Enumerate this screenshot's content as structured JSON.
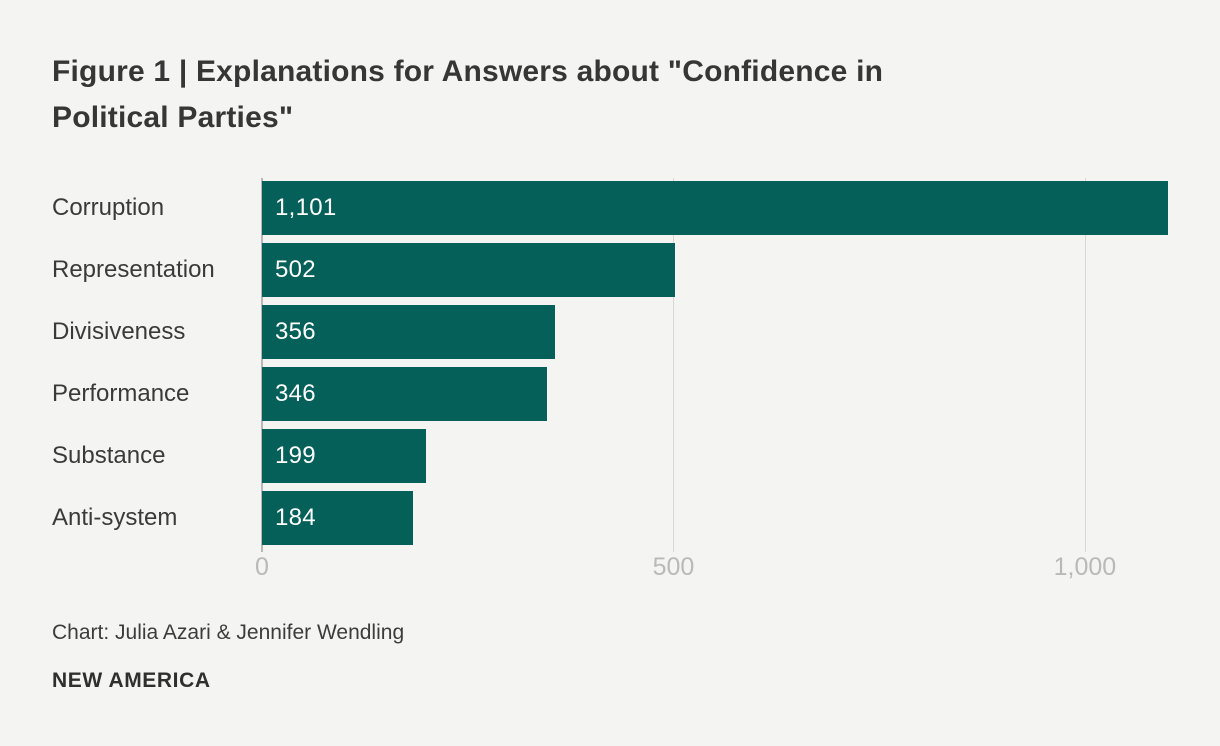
{
  "title": {
    "full": "Figure 1 | Explanations for Answers about \"Confidence in Political Parties\"",
    "line1": "Figure 1 | Explanations for Answers about \"Confidence in",
    "line2": "Political Parties\""
  },
  "chart_data": {
    "type": "bar",
    "orientation": "horizontal",
    "title": "Figure 1 | Explanations for Answers about \"Confidence in Political Parties\"",
    "categories": [
      "Corruption",
      "Representation",
      "Divisiveness",
      "Performance",
      "Substance",
      "Anti-system"
    ],
    "values": [
      1101,
      502,
      356,
      346,
      199,
      184
    ],
    "value_labels": [
      "1,101",
      "502",
      "356",
      "346",
      "199",
      "184"
    ],
    "xticks": [
      {
        "value": 0,
        "label": "0"
      },
      {
        "value": 500,
        "label": "500"
      },
      {
        "value": 1000,
        "label": "1,000"
      }
    ],
    "xlim": [
      0,
      1101
    ],
    "xlabel": "",
    "ylabel": "",
    "grid": "vertical-gridlines-only",
    "legend": "none",
    "bar_color": "#046058",
    "value_label_position": "inside-left",
    "value_label_color": "#ffffff"
  },
  "footer": {
    "credit": "Chart: Julia Azari & Jennifer Wendling",
    "org": "NEW AMERICA"
  },
  "colors": {
    "background": "#f4f4f2",
    "bar": "#046058",
    "title_text": "#363636",
    "label_text": "#3a3a3a",
    "tick_text": "#b9b9b7",
    "gridline": "#d7d7d5",
    "axis_line": "#b7b7b5"
  }
}
